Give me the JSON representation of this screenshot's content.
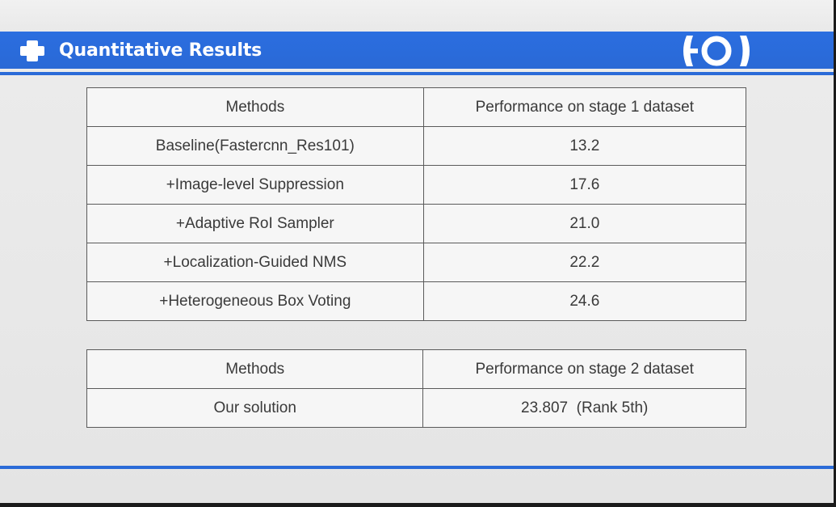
{
  "slide": {
    "title": "Quantitative Results",
    "title_icon": "plus-cross-icon",
    "logo_icon": "brand-logo-icon",
    "accent_color": "#2b6bd8",
    "header_text_color": "#ffffff"
  },
  "table_stage1": {
    "headers": [
      "Methods",
      "Performance on stage 1 dataset"
    ],
    "rows": [
      {
        "method": "Baseline(Fastercnn_Res101)",
        "performance": "13.2"
      },
      {
        "method": "+Image-level Suppression",
        "performance": "17.6"
      },
      {
        "method": "+Adaptive RoI Sampler",
        "performance": "21.0"
      },
      {
        "method": "+Localization-Guided NMS",
        "performance": "22.2"
      },
      {
        "method": "+Heterogeneous Box Voting",
        "performance": "24.6"
      }
    ]
  },
  "table_stage2": {
    "headers": [
      "Methods",
      "Performance on stage 2 dataset"
    ],
    "rows": [
      {
        "method": "Our solution",
        "performance": "23.807  (Rank 5th)"
      }
    ]
  }
}
